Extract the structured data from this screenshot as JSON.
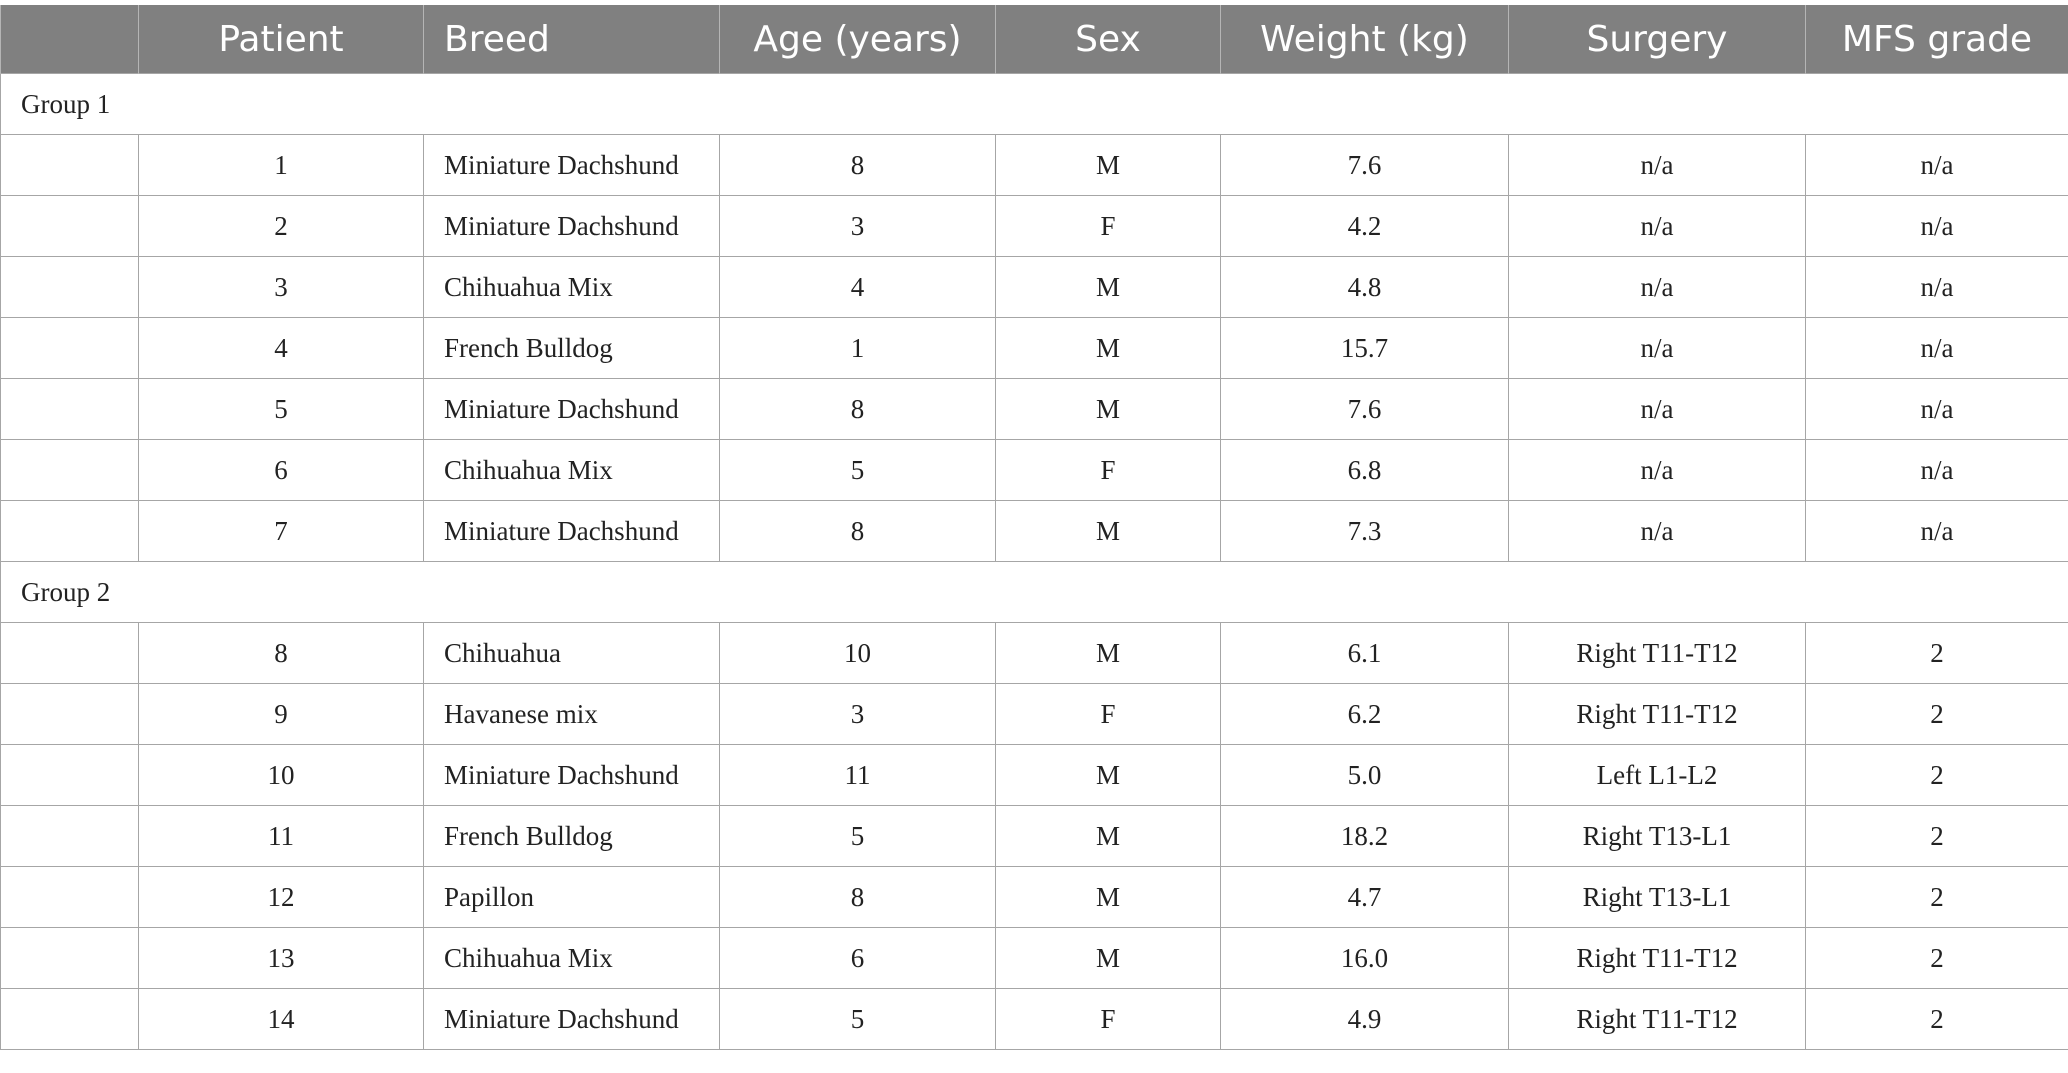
{
  "columns": [
    "",
    "Patient",
    "Breed",
    "Age (years)",
    "Sex",
    "Weight (kg)",
    "Surgery",
    "MFS grade"
  ],
  "groups": [
    {
      "label": "Group 1",
      "rows": [
        {
          "patient": "1",
          "breed": "Miniature Dachshund",
          "age": "8",
          "sex": "M",
          "weight": "7.6",
          "surgery": "n/a",
          "mfs": "n/a"
        },
        {
          "patient": "2",
          "breed": "Miniature Dachshund",
          "age": "3",
          "sex": "F",
          "weight": "4.2",
          "surgery": "n/a",
          "mfs": "n/a"
        },
        {
          "patient": "3",
          "breed": "Chihuahua Mix",
          "age": "4",
          "sex": "M",
          "weight": "4.8",
          "surgery": "n/a",
          "mfs": "n/a"
        },
        {
          "patient": "4",
          "breed": "French Bulldog",
          "age": "1",
          "sex": "M",
          "weight": "15.7",
          "surgery": "n/a",
          "mfs": "n/a"
        },
        {
          "patient": "5",
          "breed": "Miniature Dachshund",
          "age": "8",
          "sex": "M",
          "weight": "7.6",
          "surgery": "n/a",
          "mfs": "n/a"
        },
        {
          "patient": "6",
          "breed": "Chihuahua Mix",
          "age": "5",
          "sex": "F",
          "weight": "6.8",
          "surgery": "n/a",
          "mfs": "n/a"
        },
        {
          "patient": "7",
          "breed": "Miniature Dachshund",
          "age": "8",
          "sex": "M",
          "weight": "7.3",
          "surgery": "n/a",
          "mfs": "n/a"
        }
      ]
    },
    {
      "label": "Group 2",
      "rows": [
        {
          "patient": "8",
          "breed": "Chihuahua",
          "age": "10",
          "sex": "M",
          "weight": "6.1",
          "surgery": "Right T11-T12",
          "mfs": "2"
        },
        {
          "patient": "9",
          "breed": "Havanese mix",
          "age": "3",
          "sex": "F",
          "weight": "6.2",
          "surgery": "Right T11-T12",
          "mfs": "2"
        },
        {
          "patient": "10",
          "breed": "Miniature Dachshund",
          "age": "11",
          "sex": "M",
          "weight": "5.0",
          "surgery": "Left L1-L2",
          "mfs": "2"
        },
        {
          "patient": "11",
          "breed": "French Bulldog",
          "age": "5",
          "sex": "M",
          "weight": "18.2",
          "surgery": "Right T13-L1",
          "mfs": "2"
        },
        {
          "patient": "12",
          "breed": "Papillon",
          "age": "8",
          "sex": "M",
          "weight": "4.7",
          "surgery": "Right T13-L1",
          "mfs": "2"
        },
        {
          "patient": "13",
          "breed": "Chihuahua Mix",
          "age": "6",
          "sex": "M",
          "weight": "16.0",
          "surgery": "Right T11-T12",
          "mfs": "2"
        },
        {
          "patient": "14",
          "breed": "Miniature Dachshund",
          "age": "5",
          "sex": "F",
          "weight": "4.9",
          "surgery": "Right T11-T12",
          "mfs": "2"
        }
      ]
    }
  ]
}
